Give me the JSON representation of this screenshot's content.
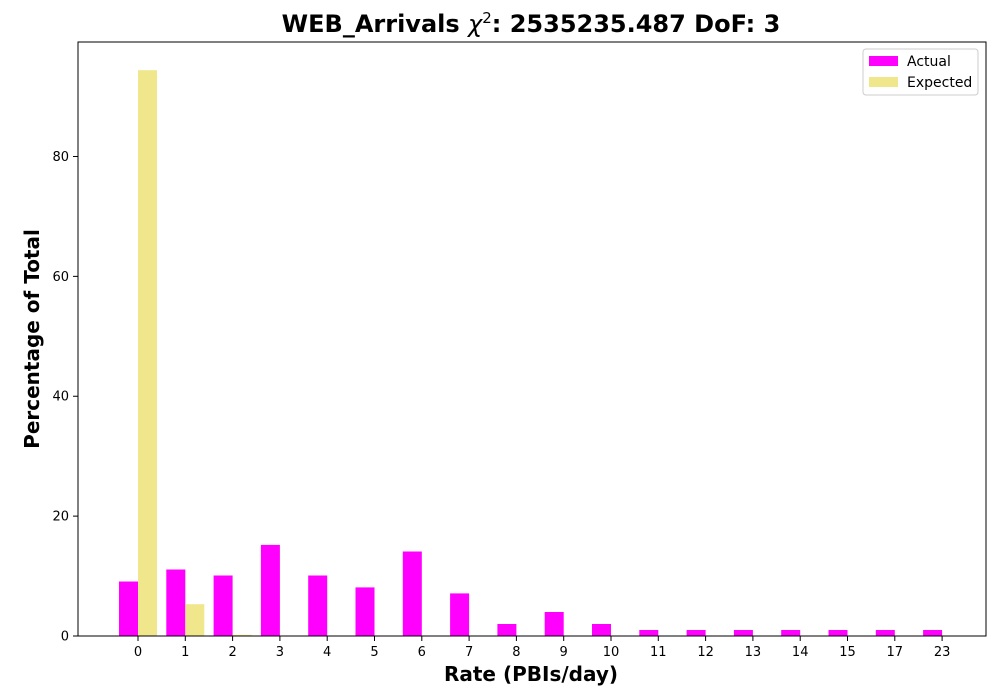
{
  "chart_data": {
    "type": "bar",
    "title_prefix": "WEB_Arrivals ",
    "title_symbol": "χ",
    "title_superscript": "2",
    "title_suffix": ": 2535235.487 DoF: 3",
    "xlabel": "Rate (PBIs/day)",
    "ylabel": "Percentage of Total",
    "categories": [
      "0",
      "1",
      "2",
      "3",
      "4",
      "5",
      "6",
      "7",
      "8",
      "9",
      "10",
      "11",
      "12",
      "13",
      "14",
      "15",
      "17",
      "23"
    ],
    "series": [
      {
        "name": "Actual",
        "color": "#ff00ff",
        "values": [
          9.1,
          11.1,
          10.1,
          15.2,
          10.1,
          8.1,
          14.1,
          7.1,
          2.0,
          4.0,
          2.0,
          1.0,
          1.0,
          1.0,
          1.0,
          1.0,
          1.0,
          1.0
        ]
      },
      {
        "name": "Expected",
        "color": "#f0e68c",
        "values": [
          94.4,
          5.3,
          0.2,
          0.0,
          0.0,
          0.0,
          0.0,
          0.0,
          0.0,
          0.0,
          0.0,
          0.0,
          0.0,
          0.0,
          0.0,
          0.0,
          0.0,
          0.0
        ]
      }
    ],
    "ylim": [
      0,
      99.1
    ],
    "yticks": [
      0,
      20,
      40,
      60,
      80
    ],
    "grid": false,
    "legend_position": "top-right"
  }
}
